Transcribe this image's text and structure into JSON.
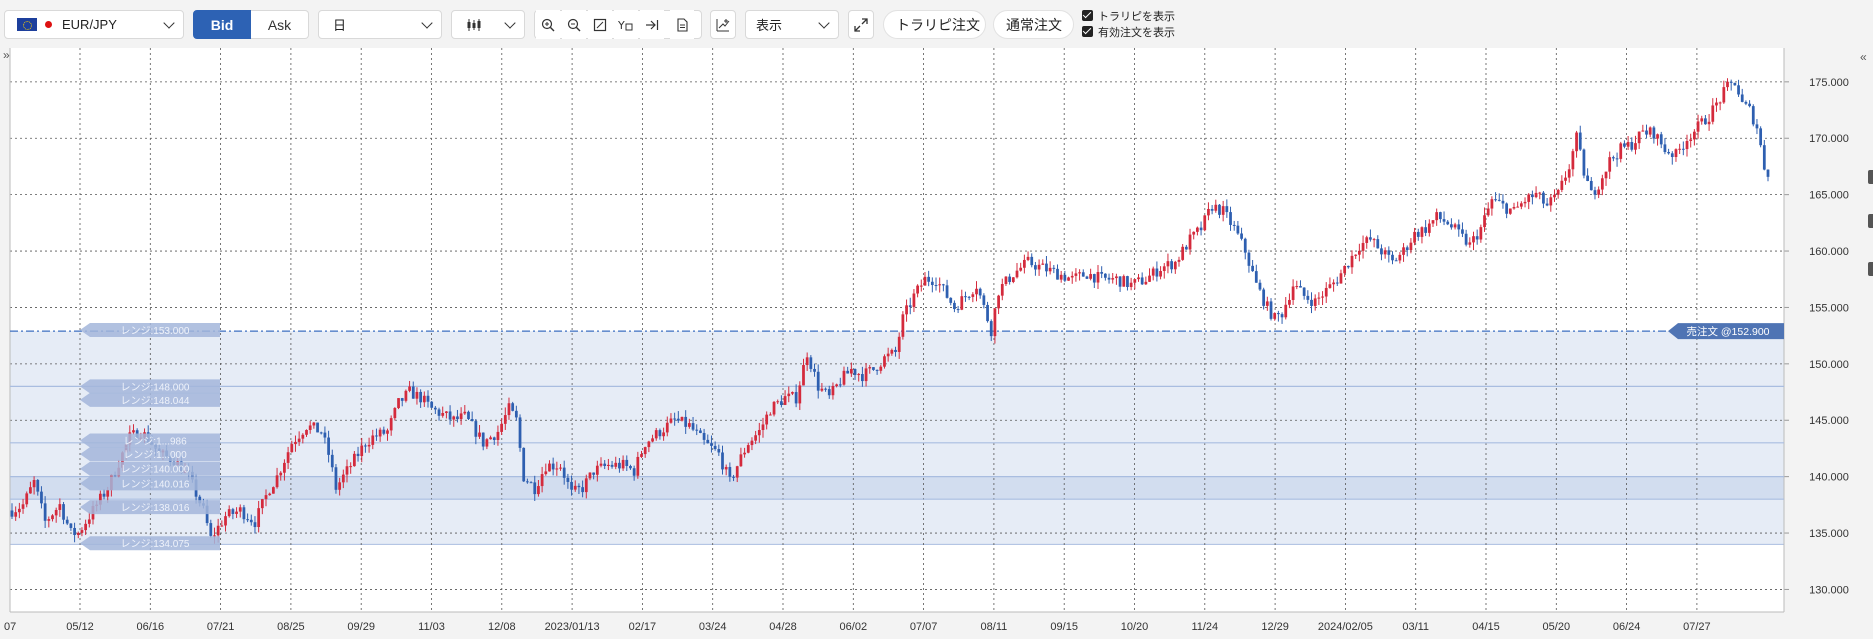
{
  "toolbar": {
    "symbol": "EUR/JPY",
    "bid_label": "Bid",
    "ask_label": "Ask",
    "timeframe": "日",
    "display_label": "表示",
    "trap_button": "トラリピ注文",
    "normal_button": "通常注文",
    "show_trap_label": "トラリピを表示",
    "show_orders_label": "有効注文を表示",
    "icons": [
      "zoom-in-icon",
      "zoom-out-icon",
      "fit-icon",
      "indicator-icon",
      "jump-latest-icon",
      "document-icon",
      "drawing-icon",
      "fullscreen-icon"
    ]
  },
  "colors": {
    "up": "#d42a3c",
    "down": "#2e5fb0",
    "range_fill": "#e6ecf6",
    "range_fill_dense": "#d2ddef",
    "range_line": "#a9bde0",
    "order_line": "#3d6fc0",
    "order_label_bg": "#4f74b4",
    "range_label_bg": "#a3b6da"
  },
  "chart_data": {
    "type": "candlestick",
    "y_axis": {
      "min": 128,
      "max": 178,
      "ticks": [
        "130.000",
        "135.000",
        "140.000",
        "145.000",
        "150.000",
        "155.000",
        "160.000",
        "165.000",
        "170.000",
        "175.000"
      ]
    },
    "x_axis": {
      "ticks": [
        "05/12",
        "06/16",
        "07/21",
        "08/25",
        "09/29",
        "11/03",
        "12/08",
        "2023/01/13",
        "02/17",
        "03/24",
        "04/28",
        "06/02",
        "07/07",
        "08/11",
        "09/15",
        "10/20",
        "11/24",
        "12/29",
        "2024/02/05",
        "03/11",
        "04/15",
        "05/20",
        "06/24",
        "07/27"
      ],
      "left_clipped": "07"
    },
    "price_path": [
      [
        0,
        137
      ],
      [
        3,
        137.5
      ],
      [
        6,
        139.5
      ],
      [
        9,
        136
      ],
      [
        13,
        137.5
      ],
      [
        16,
        135
      ],
      [
        18,
        135
      ],
      [
        22,
        137
      ],
      [
        26,
        139
      ],
      [
        30,
        142
      ],
      [
        32,
        143.5
      ],
      [
        35,
        144
      ],
      [
        38,
        143
      ],
      [
        40,
        142
      ],
      [
        44,
        141.5
      ],
      [
        48,
        140
      ],
      [
        52,
        137
      ],
      [
        54,
        134.5
      ],
      [
        58,
        136.5
      ],
      [
        62,
        137
      ],
      [
        66,
        136
      ],
      [
        70,
        139
      ],
      [
        72,
        140
      ],
      [
        76,
        143
      ],
      [
        80,
        144.5
      ],
      [
        84,
        144
      ],
      [
        86,
        142
      ],
      [
        88,
        139
      ],
      [
        92,
        141
      ],
      [
        96,
        143
      ],
      [
        98,
        143.5
      ],
      [
        102,
        144
      ],
      [
        105,
        146.5
      ],
      [
        108,
        147.5
      ],
      [
        111,
        147
      ],
      [
        114,
        146
      ],
      [
        117,
        145.5
      ],
      [
        120,
        145
      ],
      [
        123,
        145.3
      ],
      [
        126,
        144
      ],
      [
        128,
        143
      ],
      [
        132,
        144
      ],
      [
        135,
        146
      ],
      [
        137,
        145
      ],
      [
        139,
        140
      ],
      [
        142,
        139
      ],
      [
        145,
        141
      ],
      [
        149,
        141
      ],
      [
        152,
        138.5
      ],
      [
        155,
        139
      ],
      [
        158,
        140.5
      ],
      [
        162,
        141
      ],
      [
        166,
        141
      ],
      [
        169,
        140.5
      ],
      [
        172,
        143
      ],
      [
        176,
        144
      ],
      [
        180,
        145
      ],
      [
        184,
        144.5
      ],
      [
        188,
        143
      ],
      [
        192,
        142
      ],
      [
        195,
        139.5
      ],
      [
        197,
        141
      ],
      [
        200,
        143
      ],
      [
        203,
        144
      ],
      [
        206,
        146
      ],
      [
        210,
        147
      ],
      [
        213,
        147
      ],
      [
        216,
        151
      ],
      [
        219,
        148
      ],
      [
        222,
        147
      ],
      [
        225,
        148.5
      ],
      [
        228,
        149.5
      ],
      [
        231,
        149
      ],
      [
        234,
        149.5
      ],
      [
        237,
        150.5
      ],
      [
        240,
        151
      ],
      [
        242,
        154
      ],
      [
        245,
        156
      ],
      [
        248,
        157.5
      ],
      [
        251,
        157.5
      ],
      [
        254,
        156
      ],
      [
        256,
        155
      ],
      [
        259,
        156
      ],
      [
        262,
        157
      ],
      [
        264,
        155
      ],
      [
        266,
        153
      ],
      [
        268,
        156.5
      ],
      [
        272,
        158
      ],
      [
        276,
        159
      ],
      [
        280,
        158.5
      ],
      [
        284,
        158
      ],
      [
        288,
        157.5
      ],
      [
        292,
        158
      ],
      [
        296,
        157.5
      ],
      [
        300,
        157.5
      ],
      [
        304,
        157
      ],
      [
        308,
        157.5
      ],
      [
        312,
        158.5
      ],
      [
        316,
        159
      ],
      [
        318,
        160
      ],
      [
        320,
        161
      ],
      [
        323,
        162
      ],
      [
        326,
        164
      ],
      [
        329,
        163.5
      ],
      [
        332,
        162
      ],
      [
        335,
        160
      ],
      [
        338,
        157
      ],
      [
        341,
        155
      ],
      [
        343,
        154
      ],
      [
        345,
        154.5
      ],
      [
        348,
        157
      ],
      [
        351,
        156
      ],
      [
        354,
        155.5
      ],
      [
        357,
        156.5
      ],
      [
        360,
        157.5
      ],
      [
        363,
        159
      ],
      [
        366,
        160.5
      ],
      [
        369,
        161
      ],
      [
        372,
        160
      ],
      [
        375,
        159
      ],
      [
        378,
        160
      ],
      [
        381,
        161.5
      ],
      [
        384,
        162
      ],
      [
        387,
        163
      ],
      [
        390,
        162.5
      ],
      [
        393,
        161.5
      ],
      [
        396,
        160.5
      ],
      [
        399,
        162
      ],
      [
        402,
        164.5
      ],
      [
        405,
        164
      ],
      [
        408,
        163.5
      ],
      [
        411,
        164.5
      ],
      [
        414,
        165
      ],
      [
        417,
        164
      ],
      [
        420,
        165
      ],
      [
        423,
        167.5
      ],
      [
        425,
        170
      ],
      [
        427,
        167
      ],
      [
        429,
        165
      ],
      [
        431,
        166
      ],
      [
        434,
        168
      ],
      [
        437,
        169
      ],
      [
        440,
        169.5
      ],
      [
        443,
        170.5
      ],
      [
        446,
        170.5
      ],
      [
        449,
        169
      ],
      [
        452,
        168.5
      ],
      [
        455,
        170
      ],
      [
        458,
        171
      ],
      [
        461,
        172
      ],
      [
        464,
        173.5
      ],
      [
        466,
        174.5
      ],
      [
        468,
        175
      ],
      [
        470,
        173
      ],
      [
        472,
        172.5
      ],
      [
        474,
        171
      ],
      [
        476,
        167.5
      ],
      [
        477,
        167
      ]
    ],
    "range_lines": [
      152.9,
      148.0,
      143.0,
      140.0,
      138.0
    ],
    "range_labels": [
      {
        "text": "レンジ:153.000",
        "value": 153.0
      },
      {
        "text": "レンジ:148.000",
        "value": 148.0
      },
      {
        "text": "レンジ:148.044",
        "value": 146.8
      },
      {
        "text": "レンジ:1...986",
        "value": 143.2
      },
      {
        "text": "レンジ:1...000",
        "value": 142.0
      },
      {
        "text": "レンジ:140.000",
        "value": 140.7
      },
      {
        "text": "レンジ:140.016",
        "value": 139.4
      },
      {
        "text": "レンジ:138.016",
        "value": 137.3
      },
      {
        "text": "レンジ:134.075",
        "value": 134.1
      }
    ],
    "order_label": "売注文 @152.900",
    "order_value": 152.9,
    "range_band": [
      134.0,
      152.9
    ],
    "dense_band": [
      138.0,
      140.0
    ]
  }
}
